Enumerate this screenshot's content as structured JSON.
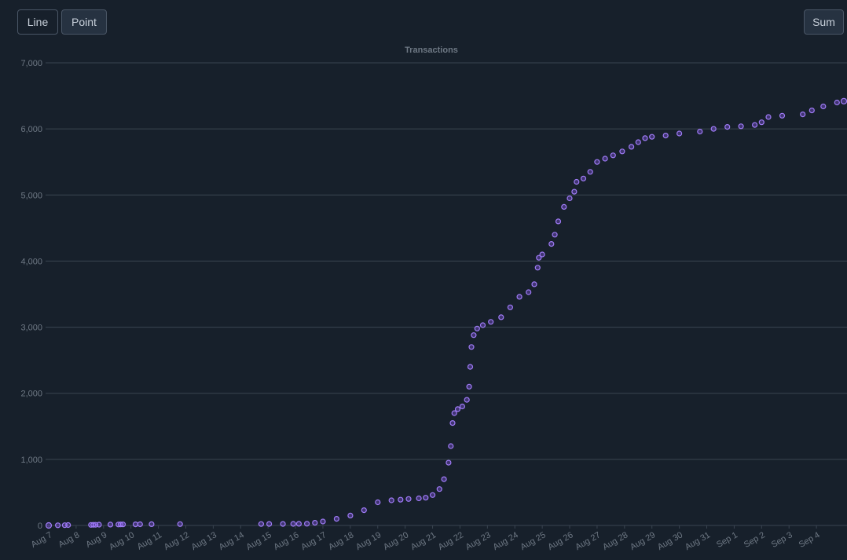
{
  "toolbar": {
    "line_label": "Line",
    "point_label": "Point",
    "sum_label": "Sum"
  },
  "colors": {
    "background": "#17202b",
    "grid": "#3a4451",
    "axis_text": "#6e7884",
    "title_text": "#6e7884",
    "point_fill": "#8b5cf6",
    "point_stroke": "#a07cf7"
  },
  "chart_data": {
    "type": "scatter",
    "title": "Transactions",
    "xlabel": "",
    "ylabel": "",
    "ylim": [
      0,
      7000
    ],
    "xlim": [
      "2023-08-07",
      "2023-09-05"
    ],
    "grid": true,
    "yticks": [
      0,
      1000,
      2000,
      3000,
      4000,
      5000,
      6000,
      7000
    ],
    "ytick_labels": [
      "0",
      "1,000",
      "2,000",
      "3,000",
      "4,000",
      "5,000",
      "6,000",
      "7,000"
    ],
    "xtick_labels": [
      "Aug 7",
      "Aug 8",
      "Aug 9",
      "Aug 10",
      "Aug 11",
      "Aug 12",
      "Aug 13",
      "Aug 14",
      "Aug 15",
      "Aug 16",
      "Aug 17",
      "Aug 18",
      "Aug 19",
      "Aug 20",
      "Aug 21",
      "Aug 22",
      "Aug 23",
      "Aug 24",
      "Aug 25",
      "Aug 26",
      "Aug 27",
      "Aug 28",
      "Aug 29",
      "Aug 30",
      "Aug 31",
      "Sep 1",
      "Sep 2",
      "Sep 3",
      "Sep 4"
    ],
    "xtick_dates": [
      "2023-08-07",
      "2023-08-08",
      "2023-08-09",
      "2023-08-10",
      "2023-08-11",
      "2023-08-12",
      "2023-08-13",
      "2023-08-14",
      "2023-08-15",
      "2023-08-16",
      "2023-08-17",
      "2023-08-18",
      "2023-08-19",
      "2023-08-20",
      "2023-08-21",
      "2023-08-22",
      "2023-08-23",
      "2023-08-24",
      "2023-08-25",
      "2023-08-26",
      "2023-08-27",
      "2023-08-28",
      "2023-08-29",
      "2023-08-30",
      "2023-08-31",
      "2023-09-01",
      "2023-09-02",
      "2023-09-03",
      "2023-09-04"
    ],
    "series": [
      {
        "points": [
          [
            "2023-08-07 00:00",
            0
          ],
          [
            "2023-08-07 08:00",
            2
          ],
          [
            "2023-08-07 14:00",
            4
          ],
          [
            "2023-08-07 17:00",
            6
          ],
          [
            "2023-08-08 13:00",
            8
          ],
          [
            "2023-08-08 15:00",
            9
          ],
          [
            "2023-08-08 17:00",
            10
          ],
          [
            "2023-08-08 20:00",
            12
          ],
          [
            "2023-08-09 06:00",
            13
          ],
          [
            "2023-08-09 13:00",
            14
          ],
          [
            "2023-08-09 15:00",
            15
          ],
          [
            "2023-08-09 17:00",
            16
          ],
          [
            "2023-08-10 04:00",
            17
          ],
          [
            "2023-08-10 08:00",
            18
          ],
          [
            "2023-08-10 18:00",
            19
          ],
          [
            "2023-08-11 19:00",
            20
          ],
          [
            "2023-08-14 18:00",
            21
          ],
          [
            "2023-08-15 01:00",
            22
          ],
          [
            "2023-08-15 13:00",
            23
          ],
          [
            "2023-08-15 22:00",
            24
          ],
          [
            "2023-08-16 03:00",
            25
          ],
          [
            "2023-08-16 10:00",
            26
          ],
          [
            "2023-08-16 17:00",
            40
          ],
          [
            "2023-08-17 00:00",
            60
          ],
          [
            "2023-08-17 12:00",
            100
          ],
          [
            "2023-08-18 00:00",
            150
          ],
          [
            "2023-08-18 12:00",
            230
          ],
          [
            "2023-08-19 00:00",
            350
          ],
          [
            "2023-08-19 12:00",
            380
          ],
          [
            "2023-08-19 20:00",
            390
          ],
          [
            "2023-08-20 03:00",
            400
          ],
          [
            "2023-08-20 12:00",
            410
          ],
          [
            "2023-08-20 18:00",
            420
          ],
          [
            "2023-08-21 00:00",
            460
          ],
          [
            "2023-08-21 06:00",
            550
          ],
          [
            "2023-08-21 10:00",
            700
          ],
          [
            "2023-08-21 14:00",
            950
          ],
          [
            "2023-08-21 16:00",
            1200
          ],
          [
            "2023-08-21 17:30",
            1550
          ],
          [
            "2023-08-21 19:00",
            1700
          ],
          [
            "2023-08-21 22:00",
            1760
          ],
          [
            "2023-08-22 02:00",
            1800
          ],
          [
            "2023-08-22 06:00",
            1900
          ],
          [
            "2023-08-22 08:00",
            2100
          ],
          [
            "2023-08-22 09:00",
            2400
          ],
          [
            "2023-08-22 10:00",
            2700
          ],
          [
            "2023-08-22 12:00",
            2880
          ],
          [
            "2023-08-22 15:00",
            2980
          ],
          [
            "2023-08-22 20:00",
            3030
          ],
          [
            "2023-08-23 03:00",
            3080
          ],
          [
            "2023-08-23 12:00",
            3150
          ],
          [
            "2023-08-23 20:00",
            3300
          ],
          [
            "2023-08-24 04:00",
            3460
          ],
          [
            "2023-08-24 12:00",
            3530
          ],
          [
            "2023-08-24 17:00",
            3650
          ],
          [
            "2023-08-24 20:00",
            3900
          ],
          [
            "2023-08-24 21:00",
            4050
          ],
          [
            "2023-08-25 00:00",
            4100
          ],
          [
            "2023-08-25 08:00",
            4260
          ],
          [
            "2023-08-25 11:00",
            4400
          ],
          [
            "2023-08-25 14:00",
            4600
          ],
          [
            "2023-08-25 19:00",
            4820
          ],
          [
            "2023-08-26 00:00",
            4950
          ],
          [
            "2023-08-26 04:00",
            5050
          ],
          [
            "2023-08-26 06:00",
            5200
          ],
          [
            "2023-08-26 12:00",
            5250
          ],
          [
            "2023-08-26 18:00",
            5350
          ],
          [
            "2023-08-27 00:00",
            5500
          ],
          [
            "2023-08-27 07:00",
            5550
          ],
          [
            "2023-08-27 14:00",
            5600
          ],
          [
            "2023-08-27 22:00",
            5660
          ],
          [
            "2023-08-28 06:00",
            5730
          ],
          [
            "2023-08-28 12:00",
            5800
          ],
          [
            "2023-08-28 18:00",
            5860
          ],
          [
            "2023-08-29 00:00",
            5880
          ],
          [
            "2023-08-29 12:00",
            5900
          ],
          [
            "2023-08-30 00:00",
            5930
          ],
          [
            "2023-08-30 18:00",
            5960
          ],
          [
            "2023-08-31 06:00",
            6000
          ],
          [
            "2023-08-31 18:00",
            6030
          ],
          [
            "2023-09-01 06:00",
            6040
          ],
          [
            "2023-09-01 18:00",
            6060
          ],
          [
            "2023-09-02 00:00",
            6100
          ],
          [
            "2023-09-02 06:00",
            6180
          ],
          [
            "2023-09-02 18:00",
            6200
          ],
          [
            "2023-09-03 12:00",
            6220
          ],
          [
            "2023-09-03 20:00",
            6280
          ],
          [
            "2023-09-04 06:00",
            6340
          ],
          [
            "2023-09-04 18:00",
            6400
          ],
          [
            "2023-09-05 00:00",
            6420
          ]
        ]
      }
    ]
  }
}
